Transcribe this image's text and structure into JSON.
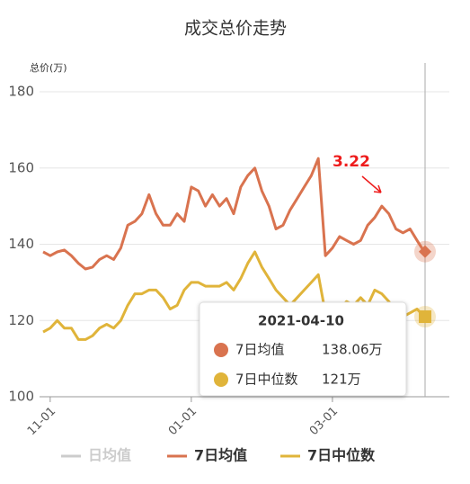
{
  "chart_data": {
    "type": "line",
    "title": "成交总价走势",
    "y_label": "总价(万)",
    "categories": [
      null,
      "11-01",
      null,
      null,
      null,
      null,
      null,
      null,
      null,
      null,
      null,
      null,
      null,
      null,
      null,
      null,
      null,
      null,
      null,
      null,
      null,
      "01-01",
      null,
      null,
      null,
      null,
      null,
      null,
      null,
      null,
      null,
      null,
      null,
      null,
      null,
      null,
      null,
      null,
      null,
      null,
      null,
      "03-01",
      null,
      null,
      null,
      null,
      null,
      null,
      null,
      null,
      null,
      null,
      null,
      null,
      null
    ],
    "series": [
      {
        "name": "日均值",
        "color": "#c8c8c8",
        "visible": false
      },
      {
        "name": "7日均值",
        "color": "#d9734f",
        "visible": true,
        "values": [
          138,
          137,
          138,
          138.5,
          137,
          135,
          133.5,
          134,
          136,
          137,
          136,
          139,
          145,
          146,
          148,
          153,
          148,
          145,
          145,
          148,
          146,
          155,
          154,
          150,
          153,
          150,
          152,
          148,
          155,
          158,
          160,
          154,
          150,
          144,
          145,
          149,
          152,
          155,
          158,
          162.5,
          137,
          139,
          142,
          141,
          140,
          141,
          145,
          147,
          150,
          148,
          144,
          143,
          144,
          141,
          138.06
        ]
      },
      {
        "name": "7日中位数",
        "color": "#e0b43a",
        "visible": true,
        "values": [
          117,
          118,
          120,
          118,
          118,
          115,
          115,
          116,
          118,
          119,
          118,
          120,
          124,
          127,
          127,
          128,
          128,
          126,
          123,
          124,
          128,
          130,
          130,
          129,
          129,
          129,
          130,
          128,
          131,
          135,
          138,
          134,
          131,
          128,
          126,
          124,
          126,
          128,
          130,
          132,
          122,
          122,
          123,
          125,
          124,
          126,
          124,
          128,
          127,
          125,
          122,
          121,
          122,
          123,
          121
        ]
      }
    ],
    "ylim": [
      100,
      180
    ],
    "yticks": [
      100,
      120,
      140,
      160,
      180
    ],
    "grid": true,
    "annotations": [
      {
        "text": "3.22",
        "color": "#ee1c1c"
      }
    ],
    "tooltip": {
      "title": "2021-04-10",
      "labels": [
        "138.06万",
        "121万"
      ]
    }
  }
}
